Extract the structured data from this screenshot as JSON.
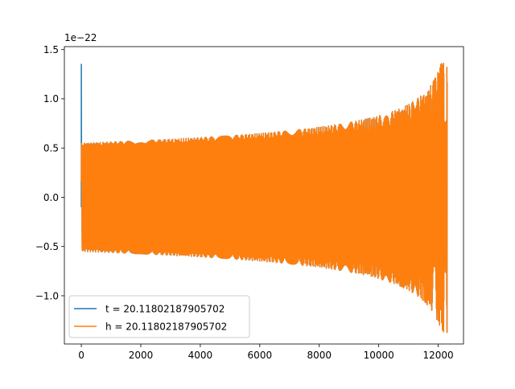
{
  "chart_data": {
    "type": "line",
    "title": "",
    "xlabel": "",
    "ylabel": "",
    "offset_label": "1e−22",
    "xlim": [
      -570,
      12850
    ],
    "ylim": [
      -1.49,
      1.53
    ],
    "xticks": [
      0,
      2000,
      4000,
      6000,
      8000,
      10000,
      12000
    ],
    "xtick_labels": [
      "0",
      "2000",
      "4000",
      "6000",
      "8000",
      "10000",
      "12000"
    ],
    "yticks": [
      -1.0,
      -0.5,
      0.0,
      0.5,
      1.0,
      1.5
    ],
    "ytick_labels": [
      "−1.0",
      "−0.5",
      "0.0",
      "0.5",
      "1.0",
      "1.5"
    ],
    "grid": false,
    "legend": {
      "placement": "lower-left"
    },
    "series": [
      {
        "name": "t = 20.11802187905702",
        "color": "#1f77b4",
        "signal": "chirp",
        "x_range": [
          0,
          12300
        ],
        "initial_spike": 1.35,
        "start_amplitude": 0.55,
        "end_amplitude": 1.38
      },
      {
        "name": "h = 20.11802187905702",
        "color": "#ff7f0e",
        "signal": "chirp",
        "x_range": [
          0,
          12300
        ],
        "start_amplitude": 0.55,
        "end_amplitude": 1.38
      }
    ]
  }
}
